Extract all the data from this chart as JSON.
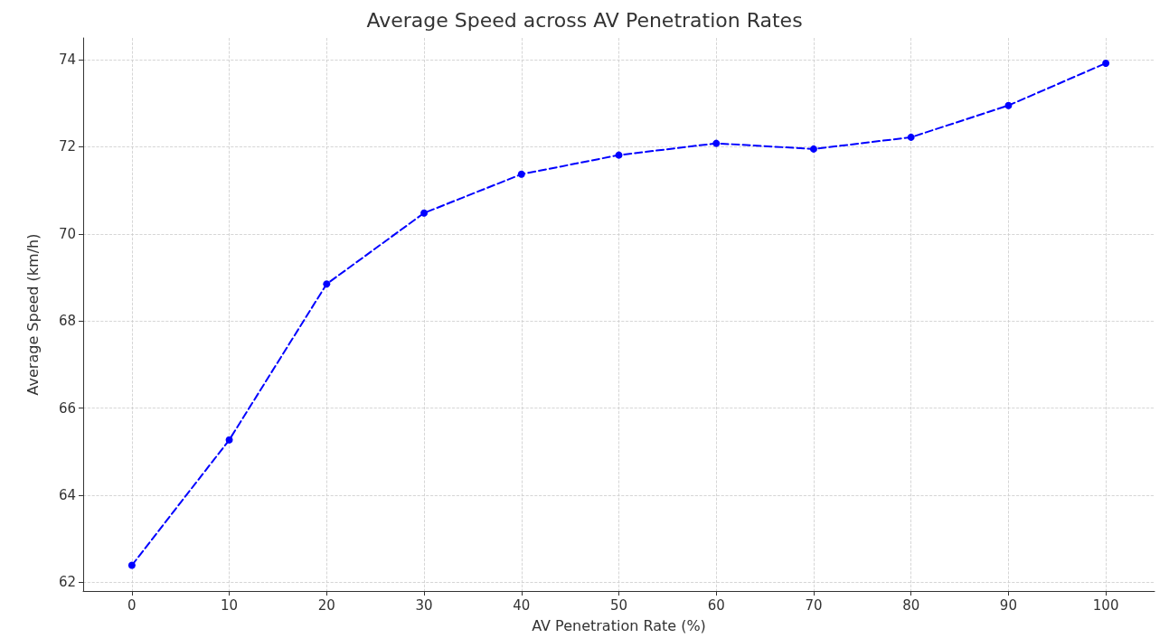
{
  "chart_data": {
    "type": "line",
    "title": "Average Speed across AV Penetration Rates",
    "xlabel": "AV Penetration Rate (%)",
    "ylabel": "Average Speed (km/h)",
    "x": [
      0,
      10,
      20,
      30,
      40,
      50,
      60,
      70,
      80,
      90,
      100
    ],
    "series": [
      {
        "color": "#0000ff",
        "values": [
          62.39,
          65.27,
          68.85,
          70.48,
          71.37,
          71.81,
          72.08,
          71.95,
          72.22,
          72.95,
          73.92
        ]
      }
    ],
    "xlim": [
      -5,
      105
    ],
    "xticks": [
      0,
      10,
      20,
      30,
      40,
      50,
      60,
      70,
      80,
      90,
      100
    ],
    "ylim": [
      61.8,
      74.5
    ],
    "yticks": [
      62,
      64,
      66,
      68,
      70,
      72,
      74
    ],
    "grid": true,
    "marker": "circle",
    "line_style": "dashed"
  }
}
